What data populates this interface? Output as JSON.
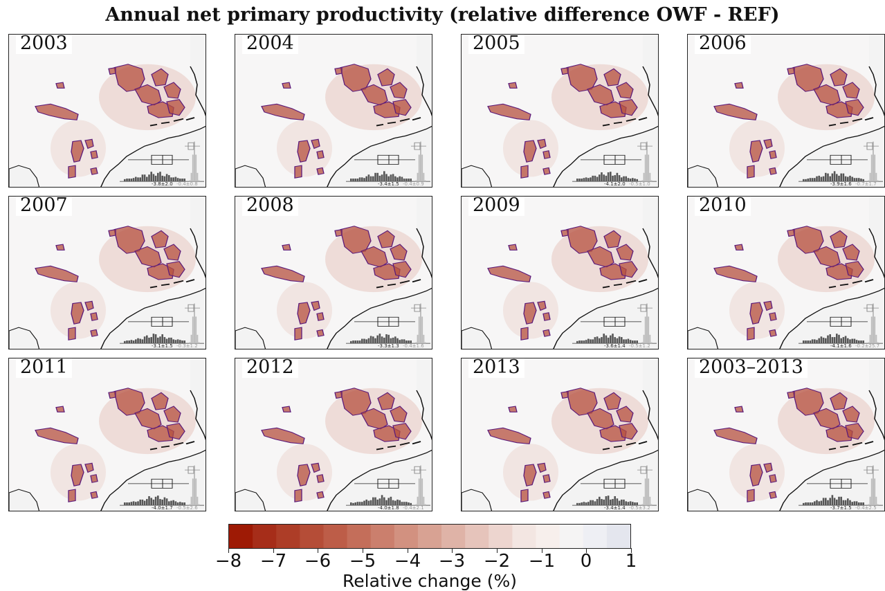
{
  "title": "Annual net primary productivity (relative difference OWF - REF)",
  "chart_data": {
    "type": "heatmap",
    "title": "Annual net primary productivity (relative difference OWF - REF)",
    "panels": [
      {
        "label": "2003",
        "owf": "-3.8±2.0",
        "ref": "-0.4±0.8"
      },
      {
        "label": "2004",
        "owf": "-3.4±1.5",
        "ref": "-0.4±0.9"
      },
      {
        "label": "2005",
        "owf": "-4.1±2.0",
        "ref": "-0.5±1.0"
      },
      {
        "label": "2006",
        "owf": "-3.9±1.6",
        "ref": "-0.7±1.7"
      },
      {
        "label": "2007",
        "owf": "-3.1±1.5",
        "ref": "-0.3±1.2"
      },
      {
        "label": "2008",
        "owf": "-3.3±1.3",
        "ref": "-0.4±1.6"
      },
      {
        "label": "2009",
        "owf": "-3.6±1.4",
        "ref": "-0.5±1.2"
      },
      {
        "label": "2010",
        "owf": "-4.1±1.6",
        "ref": "-0.2±25.7"
      },
      {
        "label": "2011",
        "owf": "-4.0±1.7",
        "ref": "-0.5±2.6"
      },
      {
        "label": "2012",
        "owf": "-4.0±1.8",
        "ref": "-0.4±2.1"
      },
      {
        "label": "2013",
        "owf": "-3.4±1.4",
        "ref": "-0.5±3.2"
      },
      {
        "label": "2003–2013",
        "owf": "-3.7±1.5",
        "ref": "-0.4±2.5"
      }
    ],
    "colorbar": {
      "label": "Relative change (%)",
      "range": [
        -8,
        1
      ],
      "ticks": [
        -8,
        -7,
        -6,
        -5,
        -4,
        -3,
        -2,
        -1,
        0,
        1
      ],
      "tick_labels": [
        "−8",
        "−7",
        "−6",
        "−5",
        "−4",
        "−3",
        "−2",
        "−1",
        "0",
        "1"
      ],
      "colors": [
        "#9e1a05",
        "#a62d19",
        "#ad3d27",
        "#b54d37",
        "#bd5d48",
        "#c46e5a",
        "#cb7f6d",
        "#d29180",
        "#d8a293",
        "#dfb3a7",
        "#e6c4bb",
        "#edd5cf",
        "#f3e6e2",
        "#f7efec",
        "#f5f4f4",
        "#eeeff4",
        "#e4e6ee"
      ]
    }
  },
  "colors": {
    "land": "#f3f3f3",
    "sea": "#f7f6f6",
    "owf_fill": "#b5503f",
    "owf_outline": "#5b1a7a",
    "coast": "#111111"
  }
}
